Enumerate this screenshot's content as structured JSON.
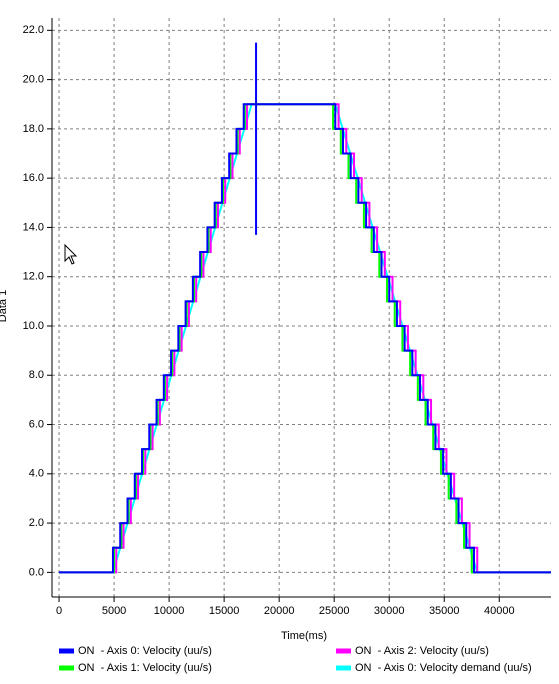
{
  "chart_data": {
    "type": "line",
    "x_label": "Time(ms)",
    "y_label": "Data 1",
    "xlim": [
      -640,
      44700
    ],
    "ylim": [
      -1.0,
      22.5
    ],
    "xticks": [
      0,
      5000,
      10000,
      15000,
      20000,
      25000,
      30000,
      35000,
      40000
    ],
    "yticks": [
      {
        "value": 0,
        "label": "0.0"
      },
      {
        "value": 2,
        "label": "2.0"
      },
      {
        "value": 4,
        "label": "4.0"
      },
      {
        "value": 6,
        "label": "6.0"
      },
      {
        "value": 8,
        "label": "8.0"
      },
      {
        "value": 10,
        "label": "10.0"
      },
      {
        "value": 12,
        "label": "12.0"
      },
      {
        "value": 14,
        "label": "14.0"
      },
      {
        "value": 16,
        "label": "16.0"
      },
      {
        "value": 18,
        "label": "18.0"
      },
      {
        "value": 20,
        "label": "20.0"
      },
      {
        "value": 22,
        "label": "22.0"
      }
    ],
    "grid": true,
    "series": [
      {
        "name": "ON  - Axis 0: Velocity (uu/s)",
        "color": "#0000ff",
        "x": [
          0,
          4900,
          4900,
          5560,
          5560,
          6220,
          6220,
          6880,
          6880,
          7540,
          7540,
          8200,
          8200,
          8860,
          8860,
          9520,
          9520,
          10180,
          10180,
          10840,
          10840,
          11500,
          11500,
          12160,
          12160,
          12820,
          12820,
          13480,
          13480,
          14140,
          14140,
          14800,
          14800,
          15460,
          15460,
          16120,
          16120,
          16780,
          16780,
          17900,
          17900,
          17900,
          17900,
          25100,
          25100,
          25800,
          25800,
          26500,
          26500,
          27200,
          27200,
          27900,
          27900,
          28600,
          28600,
          29300,
          29300,
          30000,
          30000,
          30700,
          30700,
          31400,
          31400,
          32100,
          32100,
          32800,
          32800,
          33500,
          33500,
          34200,
          34200,
          34900,
          34900,
          35600,
          35600,
          36300,
          36300,
          37000,
          37000,
          37700,
          37700,
          44700
        ],
        "values": [
          0,
          0,
          1,
          1,
          2,
          2,
          3,
          3,
          4,
          4,
          5,
          5,
          6,
          6,
          7,
          7,
          8,
          8,
          9,
          9,
          10,
          10,
          11,
          11,
          12,
          12,
          13,
          13,
          14,
          14,
          15,
          15,
          16,
          16,
          17,
          17,
          18,
          18,
          19,
          19,
          21.5,
          13.7,
          19,
          19,
          18,
          18,
          17,
          17,
          16,
          16,
          15,
          15,
          14,
          14,
          13,
          13,
          12,
          12,
          11,
          11,
          10,
          10,
          9,
          9,
          8,
          8,
          7,
          7,
          6,
          6,
          5,
          5,
          4,
          4,
          3,
          3,
          2,
          2,
          1,
          1,
          0,
          0
        ]
      },
      {
        "name": "ON  - Axis 1: Velocity (uu/s)",
        "color": "#00ff00",
        "x": [
          0,
          5000,
          5000,
          5660,
          5660,
          6320,
          6320,
          6980,
          6980,
          7640,
          7640,
          8300,
          8300,
          8960,
          8960,
          9620,
          9620,
          10280,
          10280,
          10940,
          10940,
          11600,
          11600,
          12260,
          12260,
          12920,
          12920,
          13580,
          13580,
          14240,
          14240,
          14900,
          14900,
          15560,
          15560,
          16220,
          16220,
          16880,
          16880,
          24900,
          24900,
          25600,
          25600,
          26300,
          26300,
          27000,
          27000,
          27700,
          27700,
          28400,
          28400,
          29100,
          29100,
          29800,
          29800,
          30500,
          30500,
          31200,
          31200,
          31900,
          31900,
          32600,
          32600,
          33300,
          33300,
          34000,
          34000,
          34700,
          34700,
          35400,
          35400,
          36100,
          36100,
          36800,
          36800,
          37500,
          37500,
          44700
        ],
        "values": [
          0,
          0,
          1,
          1,
          2,
          2,
          3,
          3,
          4,
          4,
          5,
          5,
          6,
          6,
          7,
          7,
          8,
          8,
          9,
          9,
          10,
          10,
          11,
          11,
          12,
          12,
          13,
          13,
          14,
          14,
          15,
          15,
          16,
          16,
          17,
          17,
          18,
          18,
          19,
          19,
          18,
          18,
          17,
          17,
          16,
          16,
          15,
          15,
          14,
          14,
          13,
          13,
          12,
          12,
          11,
          11,
          10,
          10,
          9,
          9,
          8,
          8,
          7,
          7,
          6,
          6,
          5,
          5,
          4,
          4,
          3,
          3,
          2,
          2,
          1,
          1,
          0,
          0
        ]
      },
      {
        "name": "ON  - Axis 2: Velocity (uu/s)",
        "color": "#ff00ff",
        "x": [
          0,
          5200,
          5200,
          5860,
          5860,
          6520,
          6520,
          7180,
          7180,
          7840,
          7840,
          8500,
          8500,
          9160,
          9160,
          9820,
          9820,
          10480,
          10480,
          11140,
          11140,
          11800,
          11800,
          12460,
          12460,
          13120,
          13120,
          13780,
          13780,
          14440,
          14440,
          15100,
          15100,
          15760,
          15760,
          16420,
          16420,
          17080,
          17080,
          25400,
          25400,
          26100,
          26100,
          26800,
          26800,
          27500,
          27500,
          28200,
          28200,
          28900,
          28900,
          29600,
          29600,
          30300,
          30300,
          31000,
          31000,
          31700,
          31700,
          32400,
          32400,
          33100,
          33100,
          33800,
          33800,
          34500,
          34500,
          35200,
          35200,
          35900,
          35900,
          36600,
          36600,
          37300,
          37300,
          38000,
          38000,
          44700
        ],
        "values": [
          0,
          0,
          1,
          1,
          2,
          2,
          3,
          3,
          4,
          4,
          5,
          5,
          6,
          6,
          7,
          7,
          8,
          8,
          9,
          9,
          10,
          10,
          11,
          11,
          12,
          12,
          13,
          13,
          14,
          14,
          15,
          15,
          16,
          16,
          17,
          17,
          18,
          18,
          19,
          19,
          18,
          18,
          17,
          17,
          16,
          16,
          15,
          15,
          14,
          14,
          13,
          13,
          12,
          12,
          11,
          11,
          10,
          10,
          9,
          9,
          8,
          8,
          7,
          7,
          6,
          6,
          5,
          5,
          4,
          4,
          3,
          3,
          2,
          2,
          1,
          1,
          0,
          0
        ]
      },
      {
        "name": "ON  - Axis 0: Velocity demand (uu/s)",
        "color": "#00ffff",
        "x": [
          0,
          4900,
          17500,
          25100,
          38000,
          44700
        ],
        "values": [
          0,
          0,
          19,
          19,
          0,
          0
        ]
      }
    ]
  }
}
